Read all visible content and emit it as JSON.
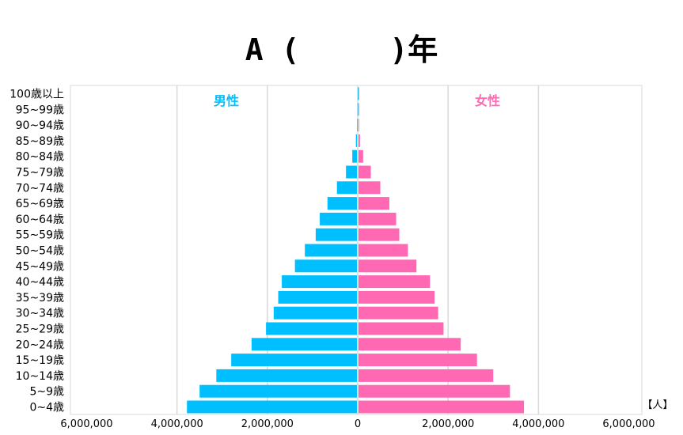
{
  "chart_data": {
    "type": "bar",
    "orientation": "horizontal",
    "subtype": "population-pyramid",
    "title": "A (　　　)年",
    "unit_label": "【人】",
    "categories": [
      "0~4歳",
      "5~9歳",
      "10~14歳",
      "15~19歳",
      "20~24歳",
      "25~29歳",
      "30~34歳",
      "35~39歳",
      "40~44歳",
      "45~49歳",
      "50~54歳",
      "55~59歳",
      "60~64歳",
      "65~69歳",
      "70~74歳",
      "75~79歳",
      "80~84歳",
      "85~89歳",
      "90~94歳",
      "95~99歳",
      "100歳以上"
    ],
    "series": [
      {
        "name": "男性",
        "color": "#00bfff",
        "side": "left",
        "values": [
          3780000,
          3500000,
          3130000,
          2800000,
          2350000,
          2030000,
          1860000,
          1760000,
          1680000,
          1390000,
          1170000,
          930000,
          840000,
          670000,
          460000,
          260000,
          120000,
          40000,
          15000,
          5000,
          1000
        ]
      },
      {
        "name": "女性",
        "color": "#ff69b4",
        "side": "right",
        "values": [
          3680000,
          3370000,
          3000000,
          2640000,
          2280000,
          1900000,
          1780000,
          1700000,
          1600000,
          1300000,
          1110000,
          920000,
          850000,
          700000,
          500000,
          290000,
          120000,
          50000,
          20000,
          8000,
          2000
        ]
      }
    ],
    "xlim": [
      -6000000,
      6000000
    ],
    "xticks": [
      -6000000,
      -4000000,
      -2000000,
      0,
      2000000,
      4000000,
      6000000
    ],
    "xtick_labels": [
      "6,000,000",
      "4,000,000",
      "2,000,000",
      "0",
      "2,000,000",
      "4,000,000",
      "6,000,000"
    ],
    "grid": true
  }
}
